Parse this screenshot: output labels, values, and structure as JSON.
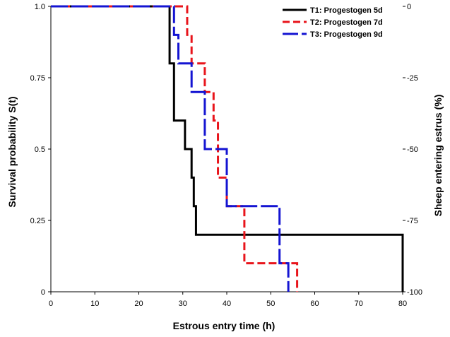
{
  "chart_data": {
    "type": "line",
    "subtype": "step",
    "xlabel": "Estrous entry time (h)",
    "ylabel": "Survival probability S(t)",
    "y2label": "Sheep entering estrus (%)",
    "xlim": [
      0,
      80
    ],
    "ylim": [
      0,
      1
    ],
    "x_ticks": [
      "0",
      "10",
      "20",
      "30",
      "40",
      "50",
      "60",
      "70",
      "80"
    ],
    "y_ticks": [
      "0",
      "0.25",
      "0.5",
      "0.75",
      "1.0"
    ],
    "y2_ticks": [
      "-100",
      "-75",
      "-50",
      "-25",
      "0"
    ],
    "legend_position": "top-right",
    "series": [
      {
        "name": "T1: Progestogen 5d",
        "color": "#000000",
        "style": "solid",
        "x": [
          0,
          27,
          28,
          30.5,
          32,
          32.5,
          33,
          80,
          80
        ],
        "y": [
          1.0,
          0.8,
          0.6,
          0.5,
          0.4,
          0.3,
          0.2,
          0.2,
          0
        ]
      },
      {
        "name": "T2: Progestogen 7d",
        "color": "#e8141b",
        "style": "dashed",
        "x": [
          0,
          31,
          32,
          35,
          37,
          38,
          40,
          44,
          56
        ],
        "y": [
          1.0,
          0.9,
          0.8,
          0.7,
          0.6,
          0.4,
          0.3,
          0.1,
          0
        ]
      },
      {
        "name": "T3: Progestogen 9d",
        "color": "#1414d2",
        "style": "longdash",
        "x": [
          0,
          28,
          29,
          32,
          35,
          40,
          52,
          54
        ],
        "y": [
          1.0,
          0.9,
          0.8,
          0.7,
          0.5,
          0.3,
          0.1,
          0
        ]
      }
    ]
  }
}
